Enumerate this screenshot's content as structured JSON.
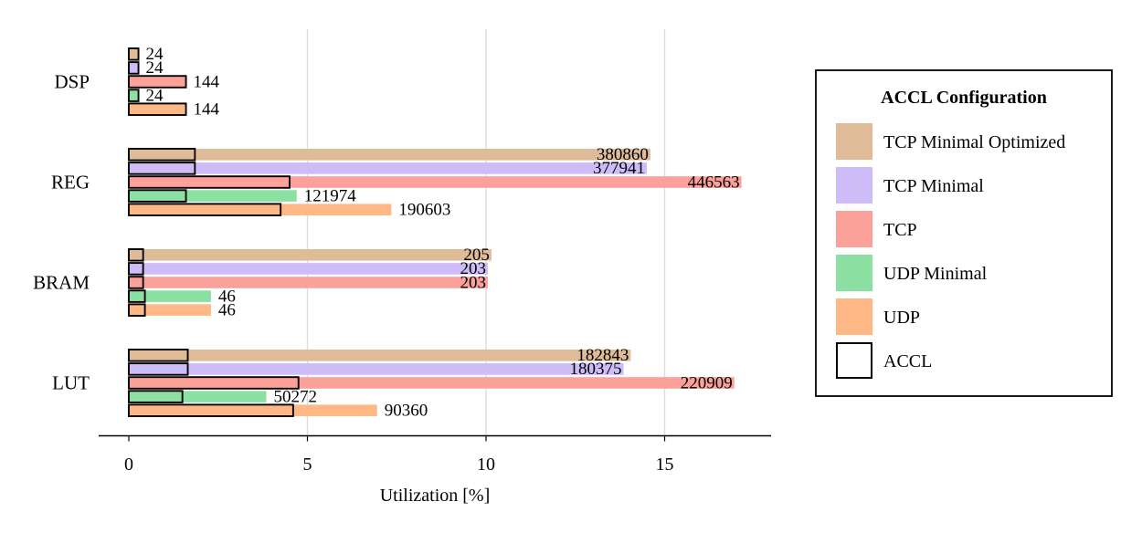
{
  "chart_data": {
    "type": "bar",
    "orientation": "horizontal",
    "title": "",
    "xlabel": "Utilization [%]",
    "ylabel": "",
    "xlim": [
      -0.8,
      18.0
    ],
    "xticks": [
      0,
      5,
      10,
      15
    ],
    "grid": "x",
    "categories": [
      "DSP",
      "REG",
      "BRAM",
      "LUT"
    ],
    "series": [
      {
        "name": "TCP Minimal Optimized",
        "color": "#dfbb98",
        "values": [
          0.27,
          14.6,
          10.15,
          14.05
        ],
        "labels": [
          "24",
          "380860",
          "205",
          "182843"
        ],
        "accl": [
          0.27,
          1.85,
          0.4,
          1.65
        ]
      },
      {
        "name": "TCP Minimal",
        "color": "#cdbcf8",
        "values": [
          0.27,
          14.5,
          10.05,
          13.85
        ],
        "labels": [
          "24",
          "377941",
          "203",
          "180375"
        ],
        "accl": [
          0.27,
          1.85,
          0.4,
          1.65
        ]
      },
      {
        "name": "TCP",
        "color": "#fca09a",
        "values": [
          1.6,
          17.15,
          10.05,
          16.95
        ],
        "labels": [
          "144",
          "446563",
          "203",
          "220909"
        ],
        "accl": [
          1.6,
          4.5,
          0.4,
          4.75
        ]
      },
      {
        "name": "UDP Minimal",
        "color": "#8be0a2",
        "values": [
          0.27,
          4.7,
          2.3,
          3.85
        ],
        "labels": [
          "24",
          "121974",
          "46",
          "50272"
        ],
        "accl": [
          0.27,
          1.6,
          0.45,
          1.5
        ]
      },
      {
        "name": "UDP",
        "color": "#ffb885",
        "values": [
          1.6,
          7.35,
          2.3,
          6.95
        ],
        "labels": [
          "144",
          "190603",
          "46",
          "90360"
        ],
        "accl": [
          1.6,
          4.25,
          0.45,
          4.6
        ]
      }
    ],
    "legend": {
      "title": "ACCL Configuration",
      "position": "right",
      "entries": [
        "TCP Minimal Optimized",
        "TCP Minimal",
        "TCP",
        "UDP Minimal",
        "UDP",
        "ACCL"
      ]
    }
  }
}
